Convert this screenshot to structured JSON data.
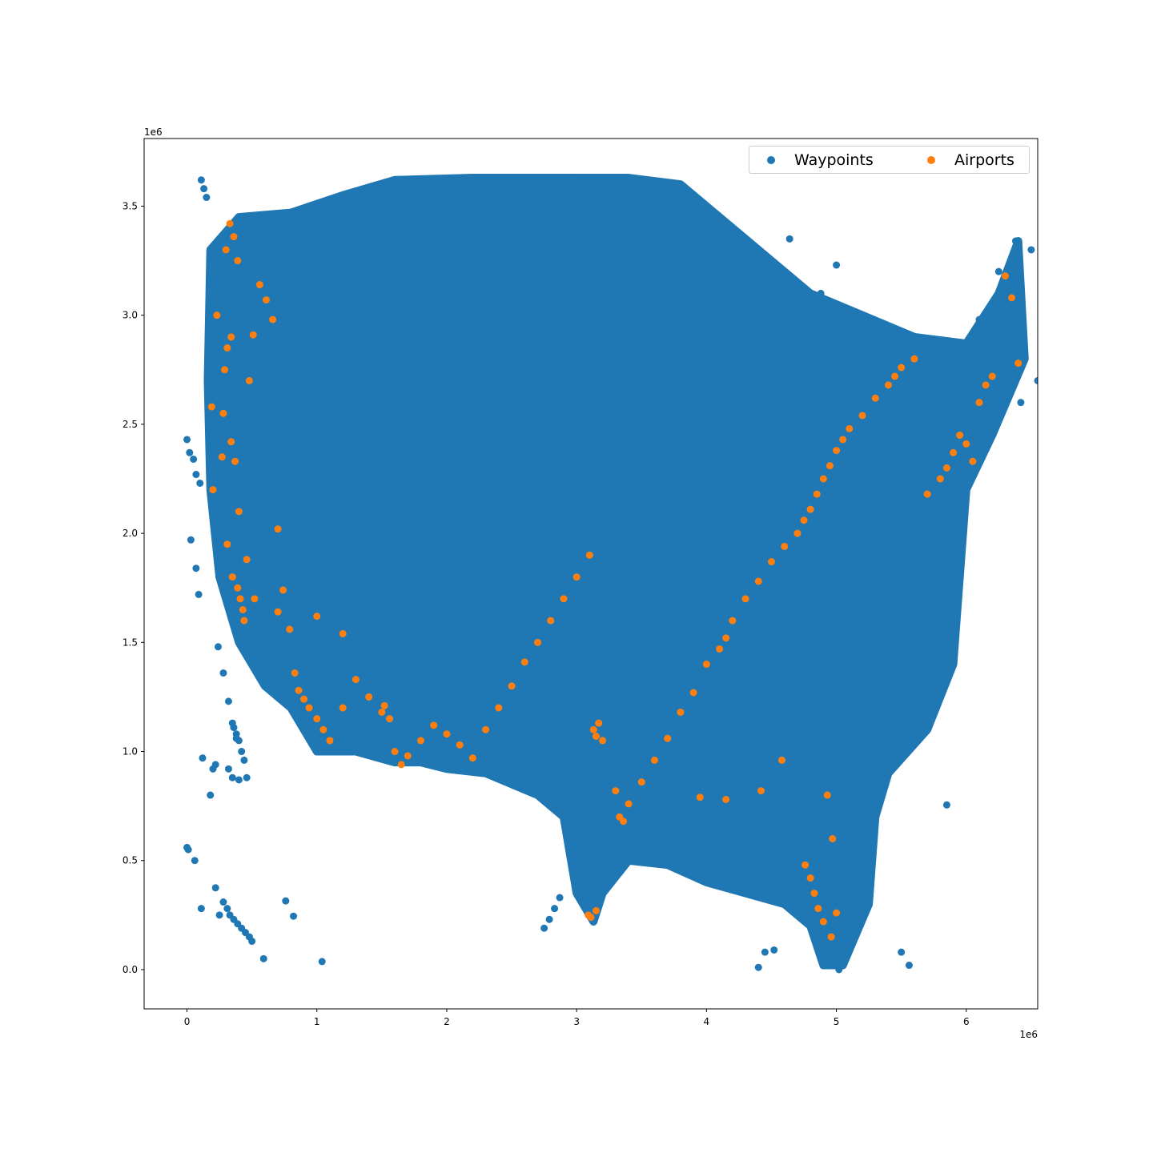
{
  "chart_data": {
    "type": "scatter",
    "title": "",
    "xlabel": "",
    "ylabel": "",
    "x_offset_text": "1e6",
    "y_offset_text": "1e6",
    "xlim": [
      -330000,
      6550000
    ],
    "ylim": [
      -180000,
      3810000
    ],
    "x_ticks": [
      0,
      1000000,
      2000000,
      3000000,
      4000000,
      5000000,
      6000000
    ],
    "x_tick_labels": [
      "0",
      "1",
      "2",
      "3",
      "4",
      "5",
      "6"
    ],
    "y_ticks": [
      0,
      500000,
      1000000,
      1500000,
      2000000,
      2500000,
      3000000,
      3500000
    ],
    "y_tick_labels": [
      "0.0",
      "0.5",
      "1.0",
      "1.5",
      "2.0",
      "2.5",
      "3.0",
      "3.5"
    ],
    "grid": false,
    "legend_position": "top-right",
    "series": [
      {
        "name": "Waypoints",
        "color": "#1f77b4",
        "region_outline": [
          [
            180000,
            3300000
          ],
          [
            400000,
            3450000
          ],
          [
            800000,
            3470000
          ],
          [
            1200000,
            3550000
          ],
          [
            1600000,
            3620000
          ],
          [
            2200000,
            3630000
          ],
          [
            3000000,
            3630000
          ],
          [
            3400000,
            3630000
          ],
          [
            3800000,
            3600000
          ],
          [
            4200000,
            3400000
          ],
          [
            4800000,
            3100000
          ],
          [
            5200000,
            3000000
          ],
          [
            5600000,
            2900000
          ],
          [
            6000000,
            2870000
          ],
          [
            6250000,
            3100000
          ],
          [
            6400000,
            3340000
          ],
          [
            6450000,
            2800000
          ],
          [
            6200000,
            2450000
          ],
          [
            6000000,
            2200000
          ],
          [
            5950000,
            1800000
          ],
          [
            5900000,
            1400000
          ],
          [
            5700000,
            1100000
          ],
          [
            5400000,
            900000
          ],
          [
            5300000,
            700000
          ],
          [
            5250000,
            300000
          ],
          [
            5050000,
            20000
          ],
          [
            4900000,
            20000
          ],
          [
            4800000,
            200000
          ],
          [
            4600000,
            300000
          ],
          [
            4300000,
            350000
          ],
          [
            4000000,
            400000
          ],
          [
            3700000,
            480000
          ],
          [
            3400000,
            500000
          ],
          [
            3200000,
            350000
          ],
          [
            3130000,
            220000
          ],
          [
            3000000,
            350000
          ],
          [
            2900000,
            700000
          ],
          [
            2700000,
            800000
          ],
          [
            2300000,
            900000
          ],
          [
            2000000,
            920000
          ],
          [
            1800000,
            950000
          ],
          [
            1600000,
            950000
          ],
          [
            1300000,
            1000000
          ],
          [
            1000000,
            1000000
          ],
          [
            800000,
            1200000
          ],
          [
            600000,
            1300000
          ],
          [
            400000,
            1500000
          ],
          [
            250000,
            1800000
          ],
          [
            180000,
            2200000
          ],
          [
            160000,
            2700000
          ],
          [
            180000,
            3300000
          ]
        ],
        "x": [
          0,
          20000,
          50000,
          70000,
          100000,
          30000,
          70000,
          90000,
          110000,
          130000,
          150000,
          0,
          10000,
          60000,
          110000,
          180000,
          220000,
          250000,
          280000,
          310000,
          330000,
          360000,
          390000,
          420000,
          450000,
          480000,
          500000,
          590000,
          760000,
          820000,
          1040000,
          220000,
          120000,
          200000,
          320000,
          350000,
          360000,
          380000,
          400000,
          420000,
          440000,
          460000,
          240000,
          280000,
          320000,
          350000,
          380000,
          400000,
          2750000,
          2790000,
          2830000,
          2870000,
          4400000,
          4450000,
          4520000,
          4960000,
          5020000,
          5500000,
          5560000,
          5850000,
          6100000,
          6250000,
          6380000,
          6500000,
          6550000,
          6420000,
          6020000,
          5950000,
          5820000,
          5760000,
          4880000,
          4640000,
          5000000,
          2990000
        ],
        "y": [
          2430000,
          2370000,
          2340000,
          2270000,
          2230000,
          1970000,
          1840000,
          1720000,
          3620000,
          3580000,
          3540000,
          560000,
          550000,
          500000,
          280000,
          800000,
          375000,
          250000,
          310000,
          280000,
          250000,
          230000,
          210000,
          190000,
          170000,
          150000,
          130000,
          50000,
          315000,
          245000,
          37000,
          940000,
          970000,
          920000,
          920000,
          880000,
          1110000,
          1080000,
          1050000,
          1000000,
          960000,
          880000,
          1480000,
          1360000,
          1230000,
          1130000,
          1060000,
          870000,
          190000,
          230000,
          280000,
          330000,
          10000,
          80000,
          90000,
          30000,
          0,
          80000,
          20000,
          755000,
          2980000,
          3200000,
          3340000,
          3300000,
          2700000,
          2600000,
          2860000,
          2580000,
          2440000,
          2300000,
          3100000,
          3350000,
          3230000,
          3630000
        ]
      },
      {
        "name": "Airports",
        "color": "#ff7f0e",
        "x": [
          230000,
          300000,
          330000,
          360000,
          390000,
          290000,
          310000,
          340000,
          280000,
          270000,
          200000,
          190000,
          310000,
          350000,
          390000,
          410000,
          430000,
          440000,
          460000,
          340000,
          370000,
          400000,
          480000,
          510000,
          560000,
          610000,
          660000,
          700000,
          740000,
          790000,
          830000,
          860000,
          900000,
          940000,
          1000000,
          1050000,
          1100000,
          1200000,
          1300000,
          1400000,
          1500000,
          1520000,
          1560000,
          1600000,
          1650000,
          1700000,
          1800000,
          1900000,
          2000000,
          2100000,
          2200000,
          2300000,
          2400000,
          2500000,
          2600000,
          2700000,
          2800000,
          2900000,
          3000000,
          3100000,
          3130000,
          3150000,
          3170000,
          3200000,
          3300000,
          3330000,
          3360000,
          3400000,
          3500000,
          3600000,
          3700000,
          3800000,
          3900000,
          4000000,
          4100000,
          4150000,
          4200000,
          4300000,
          4400000,
          4500000,
          4600000,
          4700000,
          4750000,
          4800000,
          4850000,
          4900000,
          4950000,
          5000000,
          5050000,
          5100000,
          5200000,
          5300000,
          5400000,
          5450000,
          5500000,
          5600000,
          5700000,
          5800000,
          5850000,
          5900000,
          5950000,
          6000000,
          6050000,
          6100000,
          6150000,
          6200000,
          6300000,
          6350000,
          6400000,
          4760000,
          4800000,
          4830000,
          4860000,
          4900000,
          4960000,
          5000000,
          4970000,
          4930000,
          3110000,
          3150000,
          3090000,
          1200000,
          1000000,
          700000,
          520000,
          4580000,
          4420000,
          4150000,
          3950000
        ],
        "y": [
          3000000,
          3300000,
          3420000,
          3360000,
          3250000,
          2750000,
          2850000,
          2900000,
          2550000,
          2350000,
          2200000,
          2580000,
          1950000,
          1800000,
          1750000,
          1700000,
          1650000,
          1600000,
          1880000,
          2420000,
          2330000,
          2100000,
          2700000,
          2910000,
          3140000,
          3070000,
          2980000,
          2020000,
          1740000,
          1560000,
          1360000,
          1280000,
          1240000,
          1200000,
          1150000,
          1100000,
          1050000,
          1200000,
          1330000,
          1250000,
          1180000,
          1210000,
          1150000,
          1000000,
          940000,
          980000,
          1050000,
          1120000,
          1080000,
          1030000,
          970000,
          1100000,
          1200000,
          1300000,
          1410000,
          1500000,
          1600000,
          1700000,
          1800000,
          1900000,
          1100000,
          1070000,
          1130000,
          1050000,
          820000,
          700000,
          680000,
          760000,
          860000,
          960000,
          1060000,
          1180000,
          1270000,
          1400000,
          1470000,
          1520000,
          1600000,
          1700000,
          1780000,
          1870000,
          1940000,
          2000000,
          2060000,
          2110000,
          2180000,
          2250000,
          2310000,
          2380000,
          2430000,
          2480000,
          2540000,
          2620000,
          2680000,
          2720000,
          2760000,
          2800000,
          2180000,
          2250000,
          2300000,
          2370000,
          2450000,
          2410000,
          2330000,
          2600000,
          2680000,
          2720000,
          3180000,
          3080000,
          2780000,
          480000,
          420000,
          350000,
          280000,
          220000,
          150000,
          260000,
          600000,
          800000,
          240000,
          270000,
          250000,
          1540000,
          1620000,
          1640000,
          1700000,
          960000,
          820000,
          780000,
          790000
        ]
      }
    ]
  },
  "legend": {
    "entries": [
      "Waypoints",
      "Airports"
    ]
  }
}
